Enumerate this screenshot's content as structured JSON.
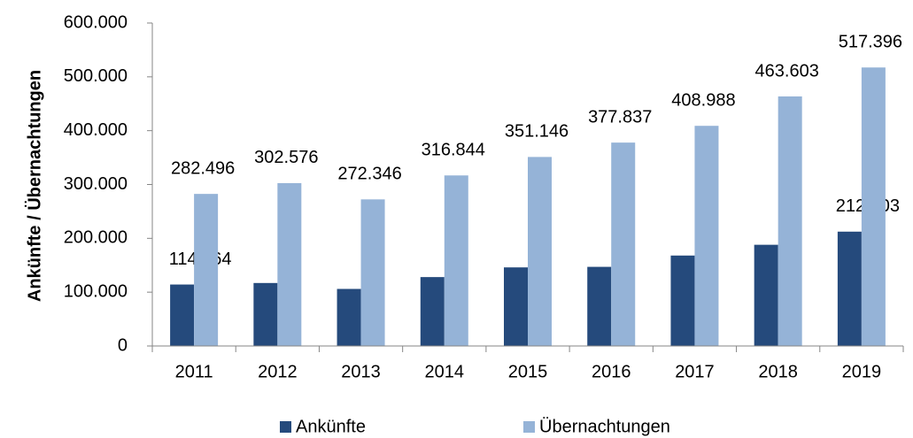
{
  "chart_data": {
    "type": "bar",
    "ylabel": "Ankünfte / Übernachtungen",
    "categories": [
      "2011",
      "2012",
      "2013",
      "2014",
      "2015",
      "2016",
      "2017",
      "2018",
      "2019"
    ],
    "series": [
      {
        "name": "Ankünfte",
        "color": "#254a7c",
        "values": [
          114164,
          117000,
          106000,
          128000,
          146000,
          147000,
          168000,
          188000,
          212403
        ],
        "value_labels": [
          "114.164",
          null,
          null,
          null,
          null,
          null,
          null,
          null,
          "212.403"
        ]
      },
      {
        "name": "Übernachtungen",
        "color": "#95b3d7",
        "values": [
          282496,
          302576,
          272346,
          316844,
          351146,
          377837,
          408988,
          463603,
          517396
        ],
        "value_labels": [
          "282.496",
          "302.576",
          "272.346",
          "316.844",
          "351.146",
          "377.837",
          "408.988",
          "463.603",
          "517.396"
        ]
      }
    ],
    "ylim": [
      0,
      600000
    ],
    "yticks": [
      0,
      {
        "value": 100000,
        "label": "100.000"
      },
      {
        "value": 200000,
        "label": "200.000"
      },
      {
        "value": 300000,
        "label": "300.000"
      },
      {
        "value": 400000,
        "label": "400.000"
      },
      {
        "value": 500000,
        "label": "500.000"
      },
      {
        "value": 600000,
        "label": "600.000"
      }
    ],
    "grid": false,
    "legend": "bottom"
  }
}
